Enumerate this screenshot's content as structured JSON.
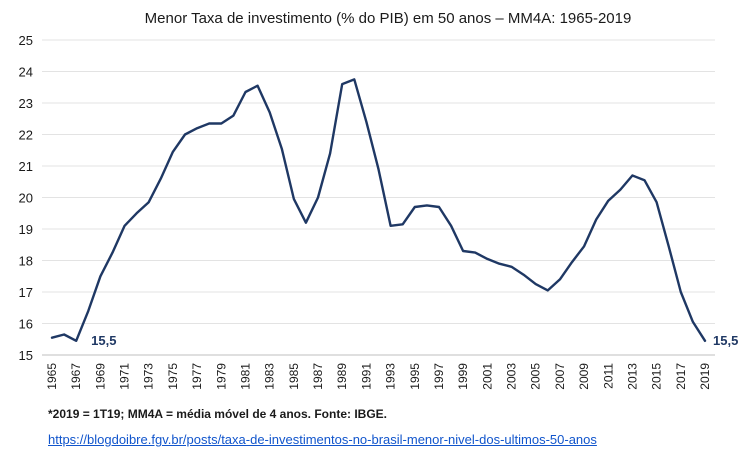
{
  "chart_data": {
    "type": "line",
    "title": "Menor Taxa de investimento (% do PIB)  em 50 anos – MM4A: 1965-2019",
    "xlabel": "",
    "ylabel": "",
    "ylim": [
      15,
      25
    ],
    "yticks": [
      "15",
      "16",
      "17",
      "18",
      "19",
      "20",
      "21",
      "22",
      "23",
      "24",
      "25"
    ],
    "xtick_labels": [
      "1965",
      "1967",
      "1969",
      "1971",
      "1973",
      "1975",
      "1977",
      "1979",
      "1981",
      "1983",
      "1985",
      "1987",
      "1989",
      "1991",
      "1993",
      "1995",
      "1997",
      "1999",
      "2001",
      "2003",
      "2005",
      "2007",
      "2009",
      "2011",
      "2013",
      "2015",
      "2017",
      "2019"
    ],
    "grid": true,
    "legend": "none",
    "x": [
      1965,
      1966,
      1967,
      1968,
      1969,
      1970,
      1971,
      1972,
      1973,
      1974,
      1975,
      1976,
      1977,
      1978,
      1979,
      1980,
      1981,
      1982,
      1983,
      1984,
      1985,
      1986,
      1987,
      1988,
      1989,
      1990,
      1991,
      1992,
      1993,
      1994,
      1995,
      1996,
      1997,
      1998,
      1999,
      2000,
      2001,
      2002,
      2003,
      2004,
      2005,
      2006,
      2007,
      2008,
      2009,
      2010,
      2011,
      2012,
      2013,
      2014,
      2015,
      2016,
      2017,
      2018,
      2019
    ],
    "series": [
      {
        "values": [
          15.55,
          15.65,
          15.45,
          16.4,
          17.5,
          18.25,
          19.1,
          19.5,
          19.85,
          20.6,
          21.45,
          22.0,
          22.2,
          22.35,
          22.35,
          22.6,
          23.35,
          23.55,
          22.7,
          21.55,
          19.95,
          19.2,
          20.0,
          21.4,
          23.6,
          23.75,
          22.4,
          20.9,
          19.1,
          19.15,
          19.7,
          19.75,
          19.7,
          19.1,
          18.3,
          18.25,
          18.05,
          17.9,
          17.8,
          17.55,
          17.25,
          17.05,
          17.4,
          17.95,
          18.45,
          19.3,
          19.9,
          20.25,
          20.7,
          20.55,
          19.85,
          18.45,
          17.0,
          16.05,
          15.45
        ],
        "color": "#1f3864"
      }
    ],
    "annotations": [
      {
        "x": 1967,
        "y": 15.45,
        "text": "15,5"
      },
      {
        "x": 2019,
        "y": 15.45,
        "text": "15,5"
      }
    ]
  },
  "footnote": "*2019 = 1T19; MM4A = média móvel de 4 anos. Fonte: IBGE.",
  "source_link": "https://blogdoibre.fgv.br/posts/taxa-de-investimentos-no-brasil-menor-nivel-dos-ultimos-50-anos"
}
